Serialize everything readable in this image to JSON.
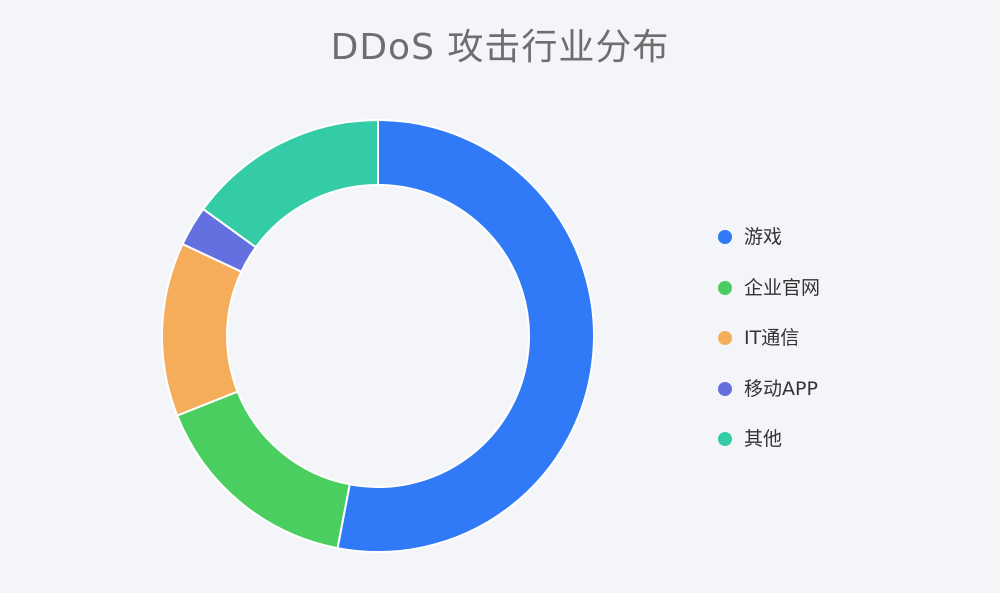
{
  "chart_data": {
    "type": "pie",
    "title": "DDoS 攻击行业分布",
    "categories": [
      "游戏",
      "企业官网",
      "IT通信",
      "移动APP",
      "其他"
    ],
    "values": [
      53,
      16,
      13,
      3,
      15
    ],
    "colors": [
      "#3079f7",
      "#4ace5f",
      "#f5ad5b",
      "#6570e0",
      "#33cca6"
    ],
    "legend_position": "right",
    "style": "donut"
  }
}
